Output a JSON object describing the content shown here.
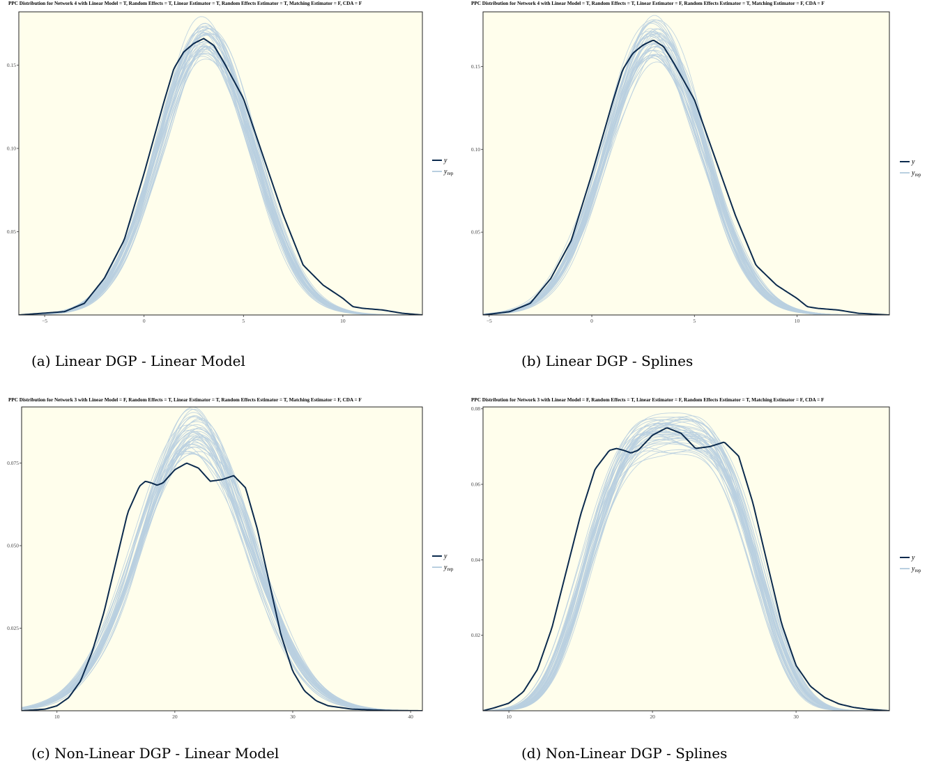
{
  "colors": {
    "y": "#0b2a4d",
    "yrep": "#b9cfe0",
    "panel_bg": "#fffeec"
  },
  "legend": {
    "y_label": "y",
    "yrep_label": "y",
    "yrep_subscript": "rep"
  },
  "chart_data": [
    {
      "type": "line",
      "title": "PPC Distribution for Network 4 with Linear Model = T, Random Effects = T, Linear Estimator = T, Random Effects Estimator = T, Matching Estimator = F, CDA = F",
      "caption": "(a) Linear DGP - Linear Model",
      "xlim": [
        -6.3,
        14.0
      ],
      "ylim": [
        0,
        0.182
      ],
      "xticks": [
        {
          "v": -5,
          "label": "−5"
        },
        {
          "v": 0,
          "label": "0"
        },
        {
          "v": 5,
          "label": "5"
        },
        {
          "v": 10,
          "label": "10"
        }
      ],
      "yticks": [
        {
          "v": 0.05,
          "label": "0.05"
        },
        {
          "v": 0.1,
          "label": "0.10"
        },
        {
          "v": 0.15,
          "label": "0.15"
        }
      ],
      "y_series": {
        "x": [
          -6.3,
          -4,
          -3,
          -2,
          -1,
          0,
          1,
          1.5,
          2,
          2.5,
          3,
          3.5,
          4,
          5,
          6,
          7,
          8,
          9,
          10,
          10.5,
          11,
          12,
          13,
          14
        ],
        "y": [
          0,
          0.002,
          0.007,
          0.022,
          0.045,
          0.085,
          0.128,
          0.148,
          0.158,
          0.163,
          0.166,
          0.162,
          0.152,
          0.13,
          0.095,
          0.06,
          0.03,
          0.018,
          0.01,
          0.005,
          0.004,
          0.003,
          0.001,
          0
        ]
      },
      "yrep_center": {
        "mu": 3.1,
        "sigma": 2.4,
        "peak": 0.166
      },
      "yrep_count": 40
    },
    {
      "type": "line",
      "title": "PPC Distribution for Network 4 with Linear Model = T, Random Effects = T, Linear Estimator = F, Random Effects Estimator = T, Matching Estimator = F, CDA = F",
      "caption": "(b) Linear DGP - Splines",
      "xlim": [
        -5.3,
        14.5
      ],
      "ylim": [
        0,
        0.183
      ],
      "xticks": [
        {
          "v": -5,
          "label": "−5"
        },
        {
          "v": 0,
          "label": "0"
        },
        {
          "v": 5,
          "label": "5"
        },
        {
          "v": 10,
          "label": "10"
        }
      ],
      "yticks": [
        {
          "v": 0.05,
          "label": "0.05"
        },
        {
          "v": 0.1,
          "label": "0.10"
        },
        {
          "v": 0.15,
          "label": "0.15"
        }
      ],
      "y_series": {
        "x": [
          -5.3,
          -4,
          -3,
          -2,
          -1,
          0,
          1,
          1.5,
          2,
          2.5,
          3,
          3.5,
          4,
          5,
          6,
          7,
          8,
          9,
          10,
          10.5,
          11,
          12,
          13,
          14.5
        ],
        "y": [
          0,
          0.002,
          0.007,
          0.022,
          0.045,
          0.085,
          0.128,
          0.148,
          0.158,
          0.163,
          0.166,
          0.162,
          0.152,
          0.13,
          0.095,
          0.06,
          0.03,
          0.018,
          0.01,
          0.005,
          0.004,
          0.003,
          0.001,
          0
        ]
      },
      "yrep_center": {
        "mu": 3.1,
        "sigma": 2.4,
        "peak": 0.166
      },
      "yrep_count": 40
    },
    {
      "type": "line",
      "title": "PPC Distribution for Network 3 with Linear Model = F, Random Effects = T, Linear Estimator = T, Random Effects Estimator = T, Matching Estimator = F, CDA = F",
      "caption": "(c) Non-Linear DGP - Linear Model",
      "xlim": [
        7.0,
        41.0
      ],
      "ylim": [
        0,
        0.092
      ],
      "xticks": [
        {
          "v": 10,
          "label": "10"
        },
        {
          "v": 20,
          "label": "20"
        },
        {
          "v": 30,
          "label": "30"
        },
        {
          "v": 40,
          "label": "40"
        }
      ],
      "yticks": [
        {
          "v": 0.025,
          "label": "0.025"
        },
        {
          "v": 0.05,
          "label": "0.050"
        },
        {
          "v": 0.075,
          "label": "0.075"
        }
      ],
      "y_series": {
        "x": [
          7,
          9,
          10,
          11,
          12,
          13,
          14,
          15,
          16,
          17,
          17.5,
          18,
          18.5,
          19,
          20,
          21,
          22,
          23,
          24,
          25,
          26,
          27,
          28,
          29,
          30,
          31,
          32,
          33,
          35,
          38,
          41
        ],
        "y": [
          0,
          0.0005,
          0.0015,
          0.004,
          0.009,
          0.018,
          0.03,
          0.045,
          0.06,
          0.068,
          0.0695,
          0.069,
          0.0683,
          0.069,
          0.073,
          0.075,
          0.0735,
          0.0695,
          0.07,
          0.0712,
          0.0675,
          0.055,
          0.039,
          0.023,
          0.012,
          0.006,
          0.003,
          0.0015,
          0.0005,
          0.0001,
          0
        ]
      },
      "yrep_center": {
        "mu": 21.7,
        "sigma": 4.7,
        "peak": 0.0845
      },
      "yrep_count": 40
    },
    {
      "type": "line",
      "title": "PPC Distribution for Network 3 with Linear Model = F, Random Effects = T, Linear Estimator = F, Random Effects Estimator = T, Matching Estimator = F, CDA = F",
      "caption": "(d) Non-Linear DGP - Splines",
      "xlim": [
        8.2,
        36.5
      ],
      "ylim": [
        0,
        0.0805
      ],
      "xticks": [
        {
          "v": 10,
          "label": "10"
        },
        {
          "v": 20,
          "label": "20"
        },
        {
          "v": 30,
          "label": "30"
        }
      ],
      "yticks": [
        {
          "v": 0.02,
          "label": "0.02"
        },
        {
          "v": 0.04,
          "label": "0.04"
        },
        {
          "v": 0.06,
          "label": "0.06"
        },
        {
          "v": 0.08,
          "label": "0.08"
        }
      ],
      "y_series": {
        "x": [
          8.2,
          9,
          10,
          11,
          12,
          13,
          14,
          15,
          16,
          17,
          17.5,
          18,
          18.5,
          19,
          20,
          21,
          22,
          23,
          24,
          25,
          26,
          27,
          28,
          29,
          30,
          31,
          32,
          33,
          34,
          35,
          36.5
        ],
        "y": [
          0,
          0.0008,
          0.002,
          0.005,
          0.011,
          0.022,
          0.037,
          0.052,
          0.064,
          0.069,
          0.0695,
          0.069,
          0.0683,
          0.069,
          0.073,
          0.075,
          0.0735,
          0.0695,
          0.07,
          0.0712,
          0.0675,
          0.055,
          0.039,
          0.023,
          0.012,
          0.0065,
          0.0035,
          0.0018,
          0.0009,
          0.0004,
          0
        ]
      },
      "yrep_center": {
        "mu": 21.3,
        "sigma": 5.3,
        "peak": 0.073,
        "flat": true
      },
      "yrep_count": 40
    }
  ]
}
